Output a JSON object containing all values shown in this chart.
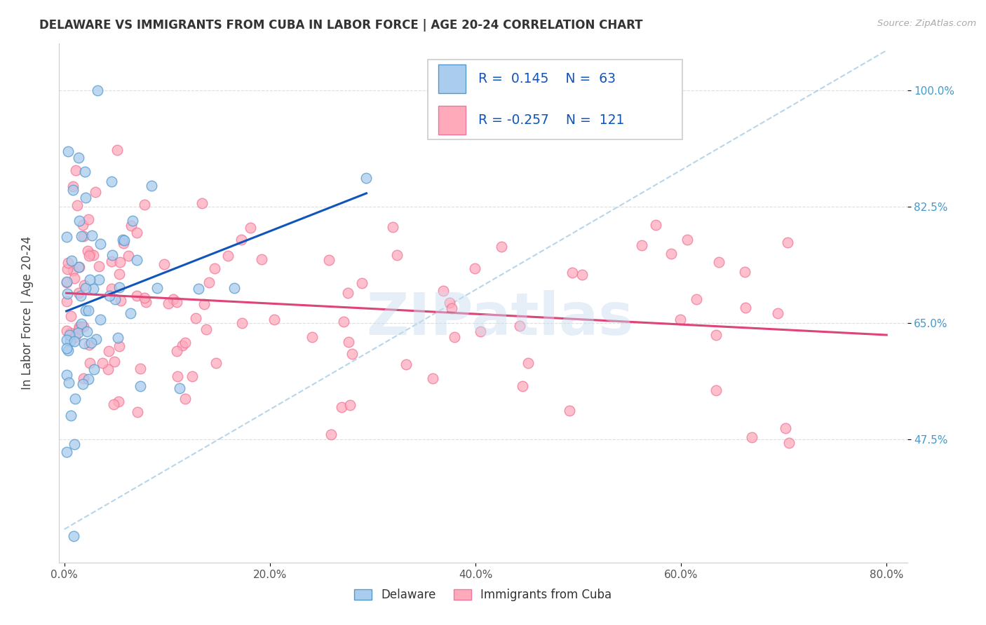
{
  "title": "DELAWARE VS IMMIGRANTS FROM CUBA IN LABOR FORCE | AGE 20-24 CORRELATION CHART",
  "source": "Source: ZipAtlas.com",
  "ylabel": "In Labor Force | Age 20-24",
  "xlim": [
    -0.005,
    0.82
  ],
  "ylim": [
    0.29,
    1.07
  ],
  "ytick_labels": [
    "47.5%",
    "65.0%",
    "82.5%",
    "100.0%"
  ],
  "ytick_values": [
    0.475,
    0.65,
    0.825,
    1.0
  ],
  "xtick_labels": [
    "0.0%",
    "20.0%",
    "40.0%",
    "60.0%",
    "80.0%"
  ],
  "xtick_values": [
    0.0,
    0.2,
    0.4,
    0.6,
    0.8
  ],
  "delaware_fill": "#aaccee",
  "delaware_edge": "#5599cc",
  "cuba_fill": "#ffaabb",
  "cuba_edge": "#ee7799",
  "R_delaware": 0.145,
  "N_delaware": 63,
  "R_cuba": -0.257,
  "N_cuba": 121,
  "trend_delaware_color": "#1155bb",
  "trend_cuba_color": "#dd4477",
  "watermark": "ZIPatlas",
  "legend_labels": [
    "Delaware",
    "Immigrants from Cuba"
  ],
  "ytick_color": "#4499cc",
  "xtick_color": "#555555",
  "grid_color": "#dddddd"
}
